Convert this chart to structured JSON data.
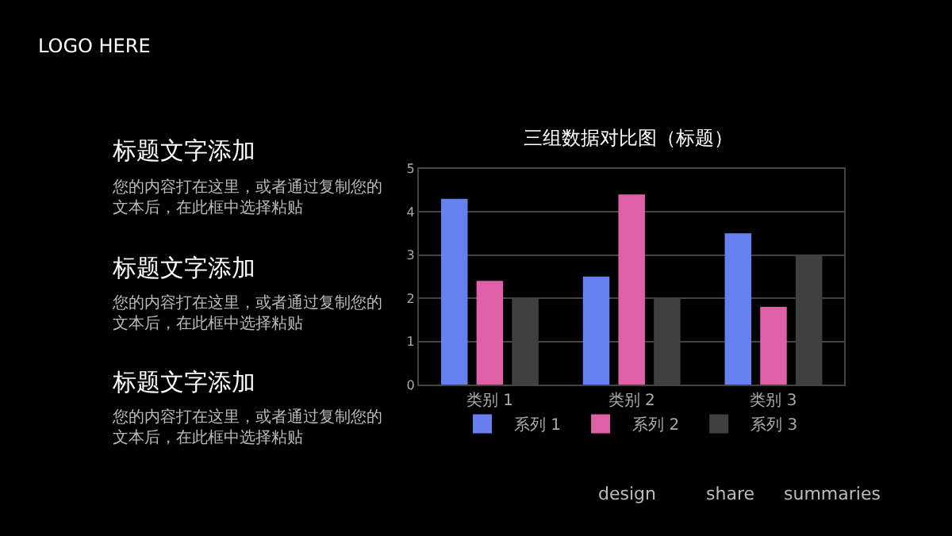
{
  "chart_data": {
    "type": "bar",
    "title": "三组数据对比图（标题）",
    "categories": [
      "类别 1",
      "类别 2",
      "类别 3"
    ],
    "series": [
      {
        "name": "系列 1",
        "color": "#6680f0",
        "values": [
          4.3,
          2.5,
          3.5
        ]
      },
      {
        "name": "系列 2",
        "color": "#e060a8",
        "values": [
          2.4,
          4.4,
          1.8
        ]
      },
      {
        "name": "系列 3",
        "color": "#404040",
        "values": [
          2,
          2,
          3
        ]
      }
    ],
    "ylim": [
      0,
      5
    ],
    "yticks": [
      0,
      1,
      2,
      3,
      4,
      5
    ],
    "grid": "y",
    "legend": "bottom",
    "annotations": [
      "LOGO HERE",
      "标题文字添加",
      "您的内容打在这里，或者通过复制您的文本后，在此框中选择粘贴",
      "标题文字添加",
      "您的内容打在这里，或者通过复制您的文本后，在此框中选择粘贴",
      "标题文字添加",
      "您的内容打在这里，或者通过复制您的文本后，在此框中选择粘贴",
      "design",
      "share",
      "summaries"
    ]
  }
}
